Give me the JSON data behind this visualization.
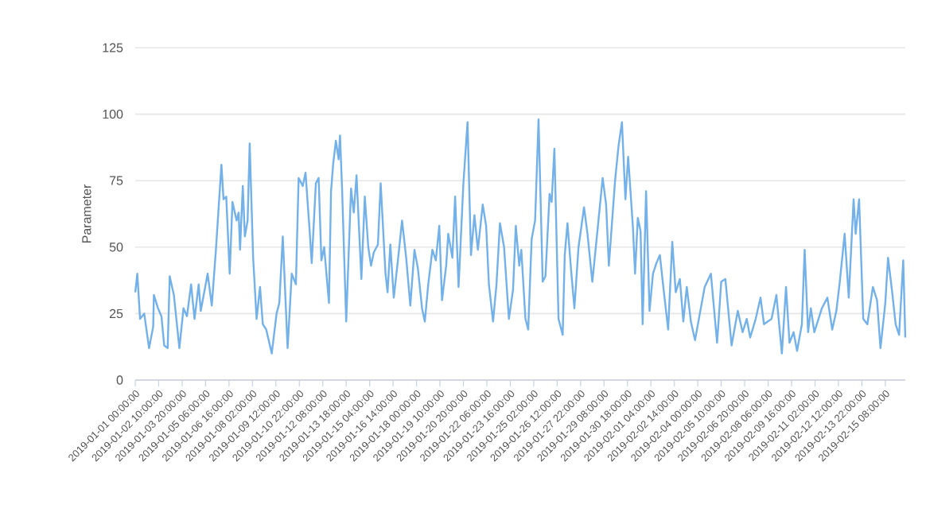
{
  "chart_data": {
    "type": "line",
    "ylabel": "Parameter",
    "color": "#73b1e8",
    "grid": "y",
    "ylim": [
      0,
      125
    ],
    "yticks": [
      0,
      25,
      50,
      75,
      100,
      125
    ],
    "xlim": [
      "2019-01-01T00:00",
      "2019-02-16T13:00"
    ],
    "xticks": [
      {
        "value": "2019-01-01T00:00",
        "label": "2019-01-01 00:00:00"
      },
      {
        "value": "2019-01-02T10:00",
        "label": "2019-01-02 10:00:00"
      },
      {
        "value": "2019-01-03T20:00",
        "label": "2019-01-03 20:00:00"
      },
      {
        "value": "2019-01-05T06:00",
        "label": "2019-01-05 06:00:00"
      },
      {
        "value": "2019-01-06T16:00",
        "label": "2019-01-06 16:00:00"
      },
      {
        "value": "2019-01-08T02:00",
        "label": "2019-01-08 02:00:00"
      },
      {
        "value": "2019-01-09T12:00",
        "label": "2019-01-09 12:00:00"
      },
      {
        "value": "2019-01-10T22:00",
        "label": "2019-01-10 22:00:00"
      },
      {
        "value": "2019-01-12T08:00",
        "label": "2019-01-12 08:00:00"
      },
      {
        "value": "2019-01-13T18:00",
        "label": "2019-01-13 18:00:00"
      },
      {
        "value": "2019-01-15T04:00",
        "label": "2019-01-15 04:00:00"
      },
      {
        "value": "2019-01-16T14:00",
        "label": "2019-01-16 14:00:00"
      },
      {
        "value": "2019-01-18T00:00",
        "label": "2019-01-18 00:00:00"
      },
      {
        "value": "2019-01-19T10:00",
        "label": "2019-01-19 10:00:00"
      },
      {
        "value": "2019-01-20T20:00",
        "label": "2019-01-20 20:00:00"
      },
      {
        "value": "2019-01-22T06:00",
        "label": "2019-01-22 06:00:00"
      },
      {
        "value": "2019-01-23T16:00",
        "label": "2019-01-23 16:00:00"
      },
      {
        "value": "2019-01-25T02:00",
        "label": "2019-01-25 02:00:00"
      },
      {
        "value": "2019-01-26T12:00",
        "label": "2019-01-26 12:00:00"
      },
      {
        "value": "2019-01-27T22:00",
        "label": "2019-01-27 22:00:00"
      },
      {
        "value": "2019-01-29T08:00",
        "label": "2019-01-29 08:00:00"
      },
      {
        "value": "2019-01-30T18:00",
        "label": "2019-01-30 18:00:00"
      },
      {
        "value": "2019-02-01T04:00",
        "label": "2019-02-01 04:00:00"
      },
      {
        "value": "2019-02-02T14:00",
        "label": "2019-02-02 14:00:00"
      },
      {
        "value": "2019-02-04T00:00",
        "label": "2019-02-04 00:00:00"
      },
      {
        "value": "2019-02-05T10:00",
        "label": "2019-02-05 10:00:00"
      },
      {
        "value": "2019-02-06T20:00",
        "label": "2019-02-06 20:00:00"
      },
      {
        "value": "2019-02-08T06:00",
        "label": "2019-02-08 06:00:00"
      },
      {
        "value": "2019-02-09T16:00",
        "label": "2019-02-09 16:00:00"
      },
      {
        "value": "2019-02-11T02:00",
        "label": "2019-02-11 02:00:00"
      },
      {
        "value": "2019-02-12T12:00",
        "label": "2019-02-12 12:00:00"
      },
      {
        "value": "2019-02-13T22:00",
        "label": "2019-02-13 22:00:00"
      },
      {
        "value": "2019-02-15T08:00",
        "label": "2019-02-15 08:00:00"
      }
    ],
    "x": [
      "2019-01-01T00:00",
      "2019-01-01T03:00",
      "2019-01-01T07:00",
      "2019-01-01T13:00",
      "2019-01-01T20:00",
      "2019-01-02T02:00",
      "2019-01-02T03:00",
      "2019-01-02T09:00",
      "2019-01-02T14:00",
      "2019-01-02T18:00",
      "2019-01-02T23:00",
      "2019-01-03T02:00",
      "2019-01-03T08:00",
      "2019-01-03T16:00",
      "2019-01-03T22:00",
      "2019-01-04T03:00",
      "2019-01-04T09:00",
      "2019-01-04T14:00",
      "2019-01-04T20:00",
      "2019-01-04T23:00",
      "2019-01-05T09:00",
      "2019-01-05T15:00",
      "2019-01-05T21:00",
      "2019-01-06T05:00",
      "2019-01-06T08:00",
      "2019-01-06T12:00",
      "2019-01-06T17:00",
      "2019-01-06T21:00",
      "2019-01-07T03:00",
      "2019-01-07T06:00",
      "2019-01-07T08:00",
      "2019-01-07T12:00",
      "2019-01-07T15:00",
      "2019-01-07T19:00",
      "2019-01-07T22:00",
      "2019-01-08T03:00",
      "2019-01-08T08:00",
      "2019-01-08T13:00",
      "2019-01-08T17:00",
      "2019-01-08T22:00",
      "2019-01-09T06:00",
      "2019-01-09T13:00",
      "2019-01-09T17:00",
      "2019-01-09T22:00",
      "2019-01-10T05:00",
      "2019-01-10T11:00",
      "2019-01-10T17:00",
      "2019-01-10T21:00",
      "2019-01-11T03:00",
      "2019-01-11T07:00",
      "2019-01-11T13:00",
      "2019-01-11T16:00",
      "2019-01-11T22:00",
      "2019-01-12T02:00",
      "2019-01-12T06:00",
      "2019-01-12T10:00",
      "2019-01-12T17:00",
      "2019-01-12T20:00",
      "2019-01-12T23:00",
      "2019-01-13T03:00",
      "2019-01-13T07:00",
      "2019-01-13T09:00",
      "2019-01-13T12:00",
      "2019-01-13T18:00",
      "2019-01-14T01:00",
      "2019-01-14T05:00",
      "2019-01-14T09:00",
      "2019-01-14T16:00",
      "2019-01-14T21:00",
      "2019-01-15T02:00",
      "2019-01-15T06:00",
      "2019-01-15T10:00",
      "2019-01-15T16:00",
      "2019-01-15T20:00",
      "2019-01-16T03:00",
      "2019-01-16T06:00",
      "2019-01-16T10:00",
      "2019-01-16T15:00",
      "2019-01-16T21:00",
      "2019-01-17T03:00",
      "2019-01-17T09:00",
      "2019-01-17T15:00",
      "2019-01-17T21:00",
      "2019-01-18T02:00",
      "2019-01-18T08:00",
      "2019-01-18T12:00",
      "2019-01-18T17:00",
      "2019-01-18T23:00",
      "2019-01-19T04:00",
      "2019-01-19T09:00",
      "2019-01-19T13:00",
      "2019-01-19T19:00",
      "2019-01-19T22:00",
      "2019-01-20T04:00",
      "2019-01-20T08:00",
      "2019-01-20T13:00",
      "2019-01-20T20:00",
      "2019-01-21T02:00",
      "2019-01-21T07:00",
      "2019-01-21T12:00",
      "2019-01-21T17:00",
      "2019-01-22T00:00",
      "2019-01-22T05:00",
      "2019-01-22T09:00",
      "2019-01-22T15:00",
      "2019-01-22T20:00",
      "2019-01-23T01:00",
      "2019-01-23T07:00",
      "2019-01-23T14:00",
      "2019-01-23T20:00",
      "2019-01-24T00:00",
      "2019-01-24T05:00",
      "2019-01-24T08:00",
      "2019-01-24T14:00",
      "2019-01-24T18:00",
      "2019-01-24T23:00",
      "2019-01-25T04:00",
      "2019-01-25T09:00",
      "2019-01-25T15:00",
      "2019-01-25T19:00",
      "2019-01-26T01:00",
      "2019-01-26T04:00",
      "2019-01-26T08:00",
      "2019-01-26T14:00",
      "2019-01-26T20:00",
      "2019-01-26T23:00",
      "2019-01-27T03:00",
      "2019-01-27T08:00",
      "2019-01-27T13:00",
      "2019-01-27T19:00",
      "2019-01-28T03:00",
      "2019-01-28T08:00",
      "2019-01-28T15:00",
      "2019-01-28T22:00",
      "2019-01-29T06:00",
      "2019-01-29T11:00",
      "2019-01-29T15:00",
      "2019-01-30T00:00",
      "2019-01-30T05:00",
      "2019-01-30T10:00",
      "2019-01-30T15:00",
      "2019-01-30T19:00",
      "2019-01-31T02:00",
      "2019-01-31T05:00",
      "2019-01-31T09:00",
      "2019-01-31T13:00",
      "2019-01-31T16:00",
      "2019-01-31T21:00",
      "2019-02-01T02:00",
      "2019-02-01T07:00",
      "2019-02-01T12:00",
      "2019-02-01T17:00",
      "2019-02-01T22:00",
      "2019-02-02T05:00",
      "2019-02-02T11:00",
      "2019-02-02T16:00",
      "2019-02-02T22:00",
      "2019-02-03T03:00",
      "2019-02-03T08:00",
      "2019-02-03T14:00",
      "2019-02-03T20:00",
      "2019-02-04T03:00",
      "2019-02-04T10:00",
      "2019-02-04T19:00",
      "2019-02-05T04:00",
      "2019-02-05T10:00",
      "2019-02-05T16:00",
      "2019-02-06T01:00",
      "2019-02-06T10:00",
      "2019-02-06T17:00",
      "2019-02-06T23:00",
      "2019-02-07T04:00",
      "2019-02-07T12:00",
      "2019-02-07T19:00",
      "2019-02-08T00:00",
      "2019-02-08T11:00",
      "2019-02-08T18:00",
      "2019-02-09T02:00",
      "2019-02-09T08:00",
      "2019-02-09T13:00",
      "2019-02-09T19:00",
      "2019-02-10T00:00",
      "2019-02-10T07:00",
      "2019-02-10T11:00",
      "2019-02-10T16:00",
      "2019-02-10T20:00",
      "2019-02-11T01:00",
      "2019-02-11T12:00",
      "2019-02-11T20:00",
      "2019-02-12T03:00",
      "2019-02-12T09:00",
      "2019-02-12T14:00",
      "2019-02-12T21:00",
      "2019-02-13T03:00",
      "2019-02-13T10:00",
      "2019-02-13T13:00",
      "2019-02-13T18:00",
      "2019-02-14T00:00",
      "2019-02-14T06:00",
      "2019-02-14T14:00",
      "2019-02-14T20:00",
      "2019-02-15T01:00",
      "2019-02-15T08:00",
      "2019-02-15T12:00",
      "2019-02-15T18:00",
      "2019-02-15T23:00",
      "2019-02-16T04:00",
      "2019-02-16T10:00",
      "2019-02-16T13:00"
    ],
    "values": [
      33,
      40,
      23,
      25,
      12,
      20,
      32,
      27,
      24,
      13,
      12,
      39,
      32,
      12,
      27,
      24,
      36,
      23,
      36,
      26,
      40,
      28,
      49,
      81,
      68,
      69,
      40,
      67,
      60,
      63,
      49,
      73,
      54,
      60,
      89,
      46,
      23,
      35,
      21,
      19,
      10,
      25,
      29,
      54,
      12,
      40,
      36,
      76,
      73,
      78,
      56,
      44,
      74,
      76,
      45,
      50,
      29,
      71,
      81,
      90,
      83,
      92,
      72,
      22,
      72,
      63,
      77,
      38,
      69,
      50,
      43,
      48,
      51,
      74,
      40,
      33,
      51,
      31,
      45,
      60,
      46,
      28,
      49,
      42,
      27,
      22,
      36,
      49,
      45,
      58,
      30,
      43,
      55,
      46,
      69,
      35,
      74,
      97,
      47,
      62,
      49,
      66,
      58,
      36,
      22,
      36,
      59,
      50,
      23,
      34,
      58,
      43,
      49,
      23,
      19,
      53,
      60,
      98,
      37,
      39,
      70,
      67,
      87,
      23,
      17,
      47,
      59,
      42,
      27,
      50,
      65,
      55,
      37,
      55,
      76,
      66,
      43,
      75,
      88,
      97,
      68,
      84,
      57,
      40,
      61,
      56,
      21,
      71,
      26,
      40,
      44,
      47,
      35,
      19,
      52,
      33,
      38,
      22,
      35,
      22,
      15,
      25,
      35,
      40,
      14,
      37,
      38,
      13,
      26,
      18,
      23,
      16,
      23,
      31,
      21,
      23,
      32,
      10,
      35,
      14,
      18,
      11,
      21,
      49,
      18,
      27,
      18,
      27,
      31,
      19,
      26,
      37,
      55,
      31,
      68,
      55,
      68,
      23,
      21,
      35,
      30,
      12,
      29,
      46,
      33,
      21,
      17,
      45,
      16
    ]
  }
}
